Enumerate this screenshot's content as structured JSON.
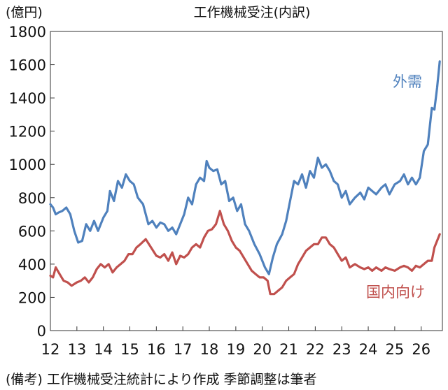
{
  "chart_data": {
    "type": "line",
    "title": "工作機械受注(内訳)",
    "ylabel": "(億円)",
    "xlabel": "",
    "ylim": [
      0,
      1800
    ],
    "yticks": [
      0,
      200,
      400,
      600,
      800,
      1000,
      1200,
      1400,
      1600,
      1800
    ],
    "xlim": [
      12,
      26.8
    ],
    "xticks": [
      12,
      13,
      14,
      15,
      16,
      17,
      18,
      19,
      20,
      21,
      22,
      23,
      24,
      25,
      26
    ],
    "grid": false,
    "legend": "inline labels near series ends",
    "note": "(備考) 工作機械受注統計により作成 季節調整は筆者",
    "series": [
      {
        "name": "外需",
        "color": "#4f81bd",
        "x": [
          12.0,
          12.1,
          12.2,
          12.3,
          12.45,
          12.6,
          12.75,
          12.9,
          13.05,
          13.2,
          13.35,
          13.5,
          13.65,
          13.8,
          14.0,
          14.15,
          14.25,
          14.4,
          14.55,
          14.7,
          14.85,
          15.0,
          15.15,
          15.3,
          15.5,
          15.7,
          15.85,
          16.0,
          16.15,
          16.3,
          16.45,
          16.6,
          16.75,
          16.9,
          17.05,
          17.2,
          17.35,
          17.5,
          17.65,
          17.8,
          17.9,
          18.0,
          18.15,
          18.3,
          18.45,
          18.6,
          18.75,
          18.9,
          19.05,
          19.2,
          19.35,
          19.5,
          19.7,
          19.9,
          20.1,
          20.25,
          20.4,
          20.55,
          20.75,
          20.9,
          21.05,
          21.2,
          21.35,
          21.5,
          21.65,
          21.8,
          21.95,
          22.1,
          22.25,
          22.4,
          22.55,
          22.7,
          22.85,
          23.0,
          23.15,
          23.3,
          23.5,
          23.7,
          23.85,
          24.0,
          24.15,
          24.3,
          24.5,
          24.65,
          24.8,
          25.0,
          25.2,
          25.35,
          25.5,
          25.65,
          25.8,
          25.95,
          26.1,
          26.25,
          26.4,
          26.5,
          26.6,
          26.7
        ],
        "values": [
          760,
          740,
          700,
          710,
          720,
          740,
          700,
          600,
          530,
          540,
          640,
          600,
          660,
          600,
          680,
          720,
          840,
          780,
          900,
          860,
          940,
          900,
          880,
          800,
          760,
          640,
          660,
          620,
          650,
          640,
          600,
          620,
          580,
          640,
          700,
          800,
          760,
          880,
          920,
          900,
          1020,
          980,
          960,
          970,
          880,
          900,
          780,
          800,
          720,
          760,
          640,
          600,
          520,
          460,
          380,
          340,
          440,
          520,
          580,
          660,
          780,
          900,
          880,
          940,
          860,
          960,
          920,
          1040,
          980,
          1000,
          960,
          900,
          880,
          800,
          840,
          760,
          800,
          830,
          790,
          860,
          840,
          820,
          860,
          880,
          820,
          880,
          900,
          940,
          880,
          920,
          880,
          920,
          1080,
          1120,
          1340,
          1330,
          1460,
          1620
        ]
      },
      {
        "name": "国内向け",
        "color": "#c0504d",
        "x": [
          12.0,
          12.1,
          12.2,
          12.35,
          12.5,
          12.65,
          12.8,
          13.0,
          13.15,
          13.3,
          13.45,
          13.6,
          13.75,
          13.9,
          14.05,
          14.2,
          14.35,
          14.5,
          14.65,
          14.8,
          14.95,
          15.1,
          15.25,
          15.4,
          15.6,
          15.8,
          16.0,
          16.15,
          16.3,
          16.45,
          16.6,
          16.75,
          16.9,
          17.05,
          17.2,
          17.35,
          17.5,
          17.65,
          17.8,
          17.95,
          18.1,
          18.25,
          18.4,
          18.55,
          18.7,
          18.85,
          19.0,
          19.15,
          19.3,
          19.45,
          19.6,
          19.75,
          19.9,
          20.05,
          20.2,
          20.3,
          20.45,
          20.6,
          20.75,
          20.9,
          21.05,
          21.2,
          21.35,
          21.5,
          21.65,
          21.8,
          21.95,
          22.1,
          22.25,
          22.4,
          22.55,
          22.7,
          22.85,
          23.0,
          23.15,
          23.3,
          23.5,
          23.7,
          23.85,
          24.0,
          24.15,
          24.3,
          24.5,
          24.65,
          24.8,
          25.0,
          25.2,
          25.35,
          25.5,
          25.65,
          25.8,
          25.95,
          26.1,
          26.25,
          26.4,
          26.5,
          26.6,
          26.7
        ],
        "values": [
          330,
          320,
          380,
          340,
          300,
          290,
          270,
          290,
          300,
          320,
          290,
          320,
          370,
          400,
          380,
          400,
          350,
          380,
          400,
          420,
          460,
          460,
          500,
          520,
          550,
          500,
          450,
          440,
          460,
          420,
          470,
          400,
          450,
          440,
          460,
          500,
          520,
          500,
          560,
          600,
          610,
          640,
          720,
          640,
          600,
          540,
          500,
          480,
          440,
          400,
          360,
          340,
          320,
          320,
          300,
          220,
          220,
          240,
          260,
          300,
          320,
          340,
          400,
          440,
          480,
          500,
          520,
          520,
          560,
          560,
          520,
          500,
          460,
          420,
          440,
          380,
          400,
          380,
          370,
          380,
          360,
          380,
          360,
          380,
          370,
          360,
          380,
          390,
          380,
          360,
          390,
          380,
          400,
          420,
          420,
          500,
          540,
          580
        ]
      }
    ]
  }
}
